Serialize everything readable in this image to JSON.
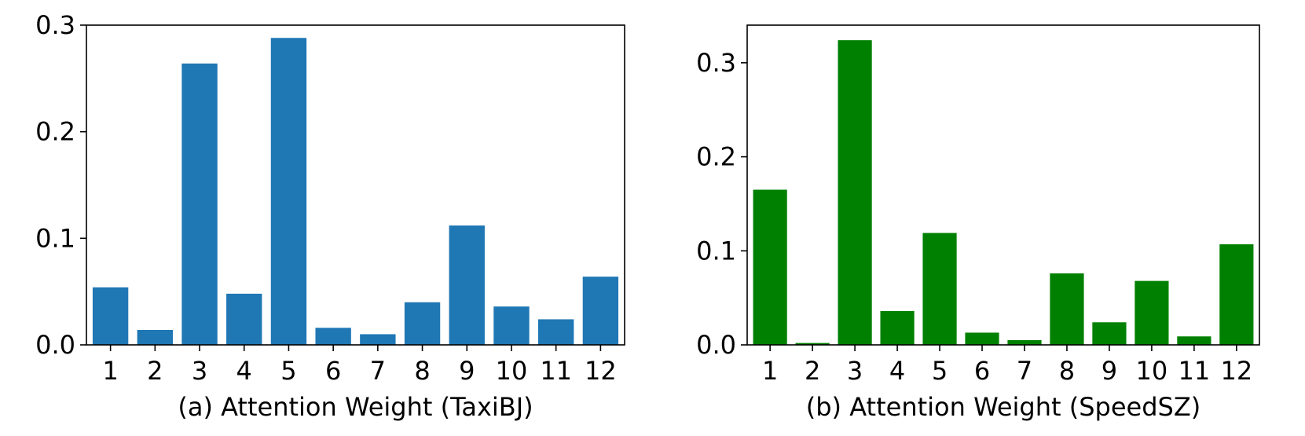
{
  "chart_data": [
    {
      "type": "bar",
      "categories": [
        "1",
        "2",
        "3",
        "4",
        "5",
        "6",
        "7",
        "8",
        "9",
        "10",
        "11",
        "12"
      ],
      "values": [
        0.054,
        0.014,
        0.264,
        0.048,
        0.288,
        0.016,
        0.01,
        0.04,
        0.112,
        0.036,
        0.024,
        0.064
      ],
      "color": "#1f77b4",
      "title": "",
      "xlabel": "(a) Attention Weight (TaxiBJ)",
      "ylabel": "",
      "ylim": [
        0,
        0.3
      ],
      "yticks": [
        0.0,
        0.1,
        0.2,
        0.3
      ],
      "ytick_labels": [
        "0.0",
        "0.1",
        "0.2",
        "0.3"
      ],
      "grid": false,
      "legend": "none"
    },
    {
      "type": "bar",
      "categories": [
        "1",
        "2",
        "3",
        "4",
        "5",
        "6",
        "7",
        "8",
        "9",
        "10",
        "11",
        "12"
      ],
      "values": [
        0.165,
        0.002,
        0.324,
        0.036,
        0.119,
        0.013,
        0.005,
        0.076,
        0.024,
        0.068,
        0.009,
        0.107
      ],
      "color": "#008000",
      "title": "",
      "xlabel": "(b) Attention Weight (SpeedSZ)",
      "ylabel": "",
      "ylim": [
        0,
        0.34
      ],
      "yticks": [
        0.0,
        0.1,
        0.2,
        0.3
      ],
      "ytick_labels": [
        "0.0",
        "0.1",
        "0.2",
        "0.3"
      ],
      "grid": false,
      "legend": "none"
    }
  ]
}
